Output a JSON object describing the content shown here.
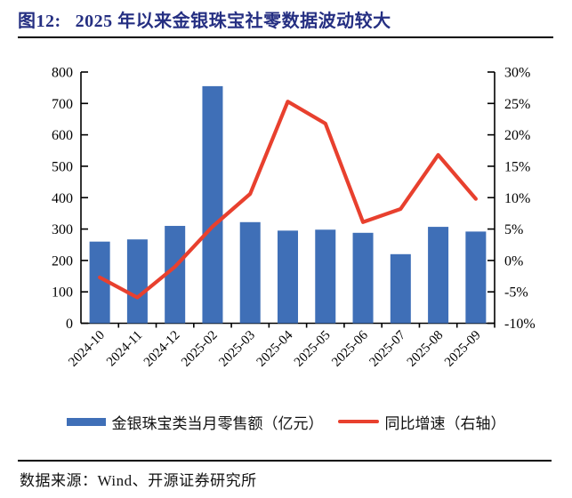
{
  "title": {
    "prefix": "图12:",
    "text": "2025 年以来金银珠宝社零数据波动较大"
  },
  "chart_data": {
    "type": "bar",
    "title": "2025 年以来金银珠宝社零数据波动较大",
    "categories": [
      "2024-10",
      "2024-11",
      "2024-12",
      "2025-02",
      "2025-03",
      "2025-04",
      "2025-05",
      "2025-06",
      "2025-07",
      "2025-08",
      "2025-09"
    ],
    "series": [
      {
        "name": "金银珠宝类当月零售额（亿元）",
        "type": "bar",
        "axis": "left",
        "color": "#3F6FB7",
        "values": [
          260,
          267,
          310,
          755,
          322,
          295,
          298,
          288,
          220,
          307,
          292
        ]
      },
      {
        "name": "同比增速（右轴）",
        "type": "line",
        "axis": "right",
        "color": "#E8402E",
        "values": [
          -2.7,
          -5.9,
          -1.0,
          5.4,
          10.6,
          25.3,
          21.8,
          6.1,
          8.2,
          16.8,
          9.8
        ]
      }
    ],
    "left_axis": {
      "min": 0,
      "max": 800,
      "step": 100,
      "tick_labels": [
        "0",
        "100",
        "200",
        "300",
        "400",
        "500",
        "600",
        "700",
        "800"
      ]
    },
    "right_axis": {
      "min": -10,
      "max": 30,
      "step": 5,
      "tick_labels": [
        "-10%",
        "-5%",
        "0%",
        "5%",
        "10%",
        "15%",
        "20%",
        "25%",
        "30%"
      ]
    },
    "legend_position": "bottom",
    "grid": false
  },
  "legend": {
    "bar_label": "金银珠宝类当月零售额（亿元）",
    "line_label": "同比增速（右轴）"
  },
  "footer": {
    "source": "数据来源：Wind、开源证券研究所"
  },
  "colors": {
    "title": "#252F82",
    "bar": "#3F6FB7",
    "line": "#E8402E",
    "axis": "#000000"
  }
}
